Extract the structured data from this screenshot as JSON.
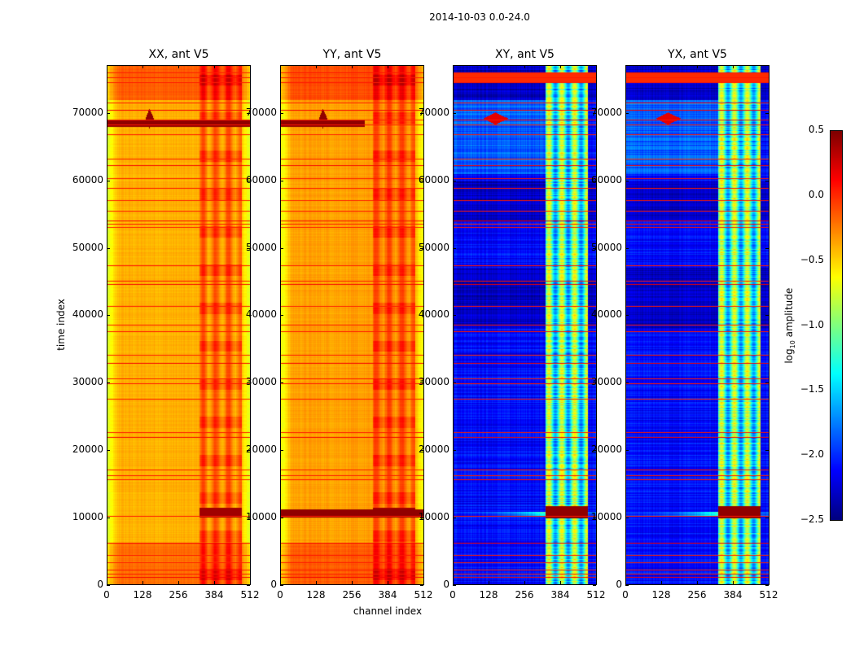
{
  "chart_data": {
    "type": "heatmap",
    "title": "2014-10-03 0.0-24.0",
    "xlabel": "channel index",
    "ylabel": "time index",
    "xlim": [
      0,
      512
    ],
    "ylim": [
      0,
      77100
    ],
    "xticks": [
      "0",
      "128",
      "256",
      "384",
      "512"
    ],
    "yticks": [
      "0",
      "10000",
      "20000",
      "30000",
      "40000",
      "50000",
      "60000",
      "70000"
    ],
    "xtick_values": [
      0,
      128,
      256,
      384,
      512
    ],
    "ytick_values": [
      0,
      10000,
      20000,
      30000,
      40000,
      50000,
      60000,
      70000
    ],
    "colormap": "jet",
    "panels": [
      {
        "title": "XX, ant V5",
        "kind": "auto",
        "baseline": -0.4
      },
      {
        "title": "YY, ant V5",
        "kind": "auto",
        "baseline": -0.35
      },
      {
        "title": "XY, ant V5",
        "kind": "cross",
        "baseline": -2.1
      },
      {
        "title": "YX, ant V5",
        "kind": "cross",
        "baseline": -2.1
      }
    ],
    "rfi_band_channels": [
      330,
      480
    ],
    "flagged_time_rows": [
      1000,
      1500,
      2000,
      3200,
      4200,
      6000,
      10000,
      15500,
      16100,
      17000,
      21800,
      22500,
      27500,
      29800,
      30500,
      32800,
      34000,
      37500,
      38500,
      41300,
      44500,
      45000,
      47300,
      53000,
      53500,
      54000,
      55400,
      57000,
      58800,
      60300,
      62200,
      63200,
      66800,
      68300,
      69000,
      70500,
      71500,
      74500,
      75300,
      76000
    ],
    "colorbar": {
      "label": "log10 amplitude",
      "label_main": "log",
      "label_sub": "10",
      "label_rest": " amplitude",
      "range": [
        -2.5,
        0.5
      ],
      "ticks": [
        "0.5",
        "0.0",
        "−0.5",
        "−1.0",
        "−1.5",
        "−2.0",
        "−2.5"
      ],
      "tick_values": [
        0.5,
        0.0,
        -0.5,
        -1.0,
        -1.5,
        -2.0,
        -2.5
      ]
    }
  }
}
